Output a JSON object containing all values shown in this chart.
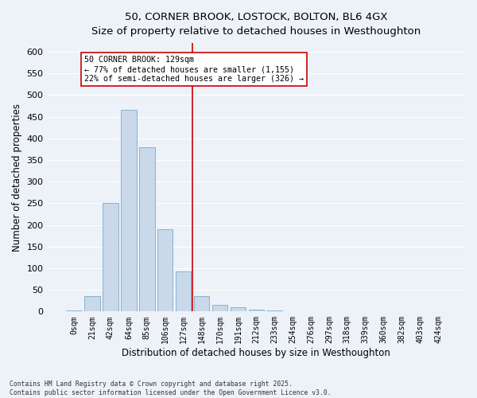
{
  "title_line1": "50, CORNER BROOK, LOSTOCK, BOLTON, BL6 4GX",
  "title_line2": "Size of property relative to detached houses in Westhoughton",
  "xlabel": "Distribution of detached houses by size in Westhoughton",
  "ylabel": "Number of detached properties",
  "bar_color": "#c9d9ea",
  "bar_edge_color": "#7aaac8",
  "background_color": "#edf2f8",
  "grid_color": "#ffffff",
  "vline_color": "#cc0000",
  "vline_x": 6.5,
  "annotation_text": "50 CORNER BROOK: 129sqm\n← 77% of detached houses are smaller (1,155)\n22% of semi-detached houses are larger (326) →",
  "annotation_box_color": "#ffffff",
  "annotation_box_edge": "#cc0000",
  "footer_line1": "Contains HM Land Registry data © Crown copyright and database right 2025.",
  "footer_line2": "Contains public sector information licensed under the Open Government Licence v3.0.",
  "categories": [
    "0sqm",
    "21sqm",
    "42sqm",
    "64sqm",
    "85sqm",
    "106sqm",
    "127sqm",
    "148sqm",
    "170sqm",
    "191sqm",
    "212sqm",
    "233sqm",
    "254sqm",
    "276sqm",
    "297sqm",
    "318sqm",
    "339sqm",
    "360sqm",
    "382sqm",
    "403sqm",
    "424sqm"
  ],
  "values": [
    2,
    35,
    250,
    465,
    380,
    190,
    93,
    35,
    15,
    10,
    5,
    2,
    1,
    0,
    0,
    0,
    1,
    0,
    0,
    0,
    1
  ],
  "ylim": [
    0,
    620
  ],
  "yticks": [
    0,
    50,
    100,
    150,
    200,
    250,
    300,
    350,
    400,
    450,
    500,
    550,
    600
  ],
  "figsize": [
    6.0,
    5.0
  ],
  "dpi": 100
}
